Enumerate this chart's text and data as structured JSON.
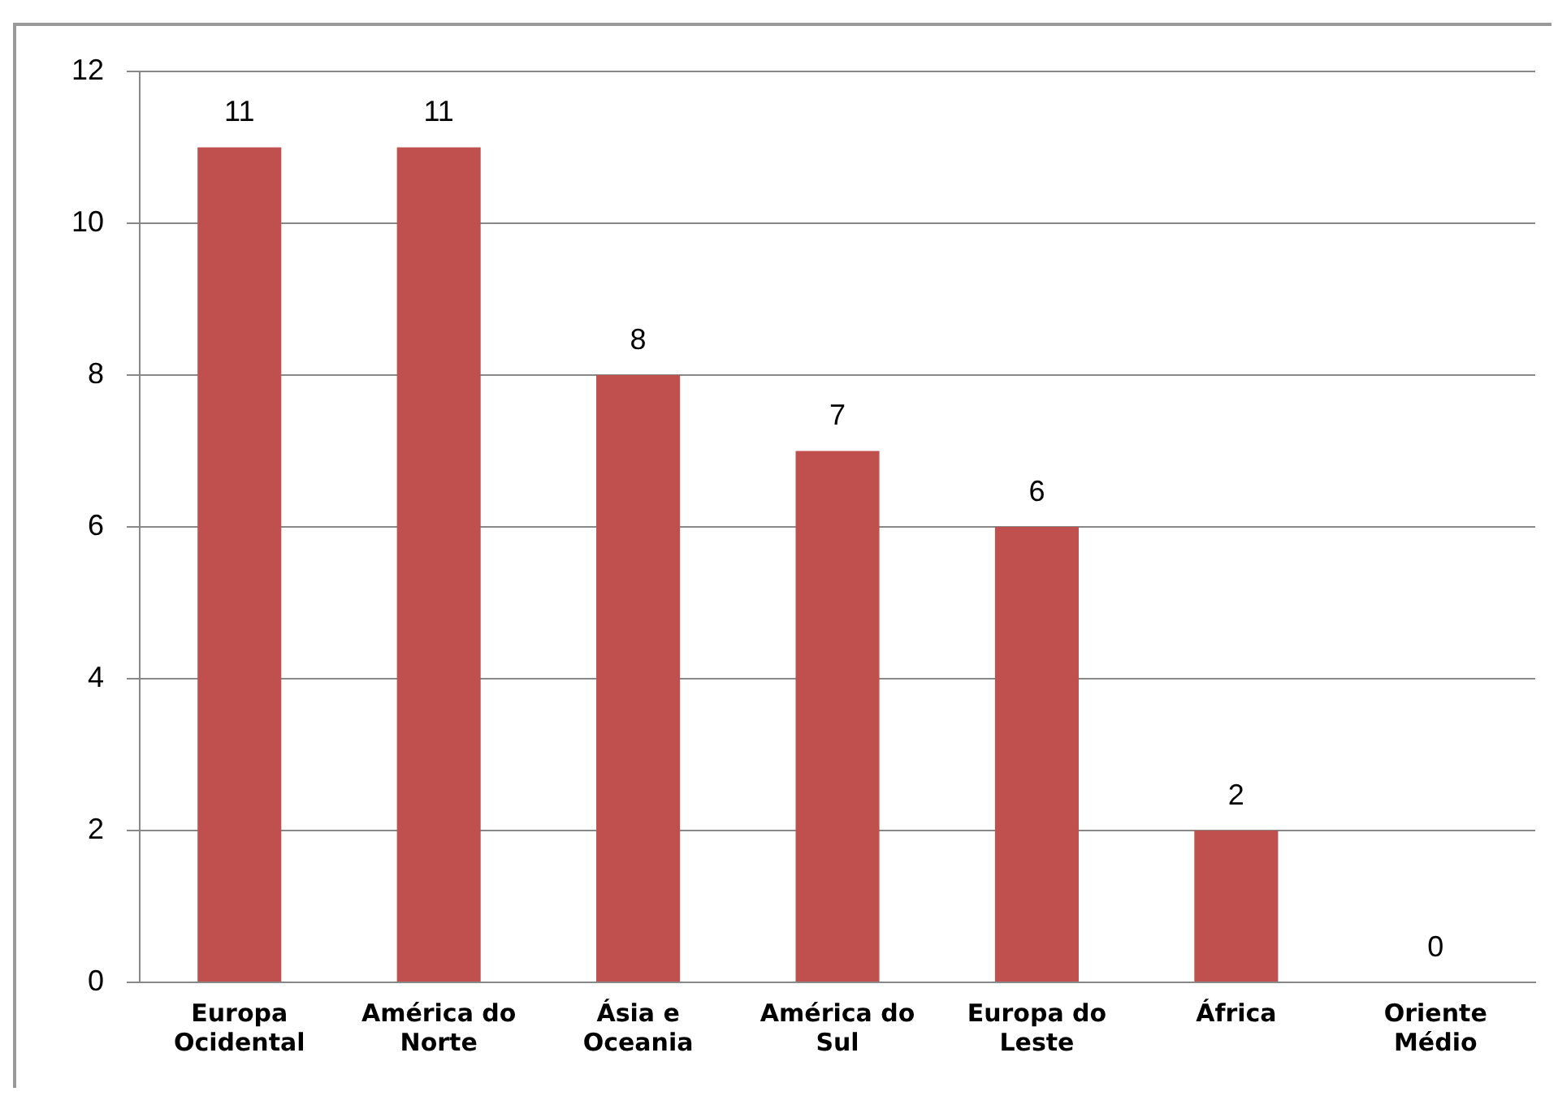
{
  "chart_data": {
    "type": "bar",
    "categories": [
      "Europa Ocidental",
      "América do Norte",
      "Ásia e Oceania",
      "América do Sul",
      "Europa do Leste",
      "África",
      "Oriente Médio"
    ],
    "values": [
      11,
      11,
      8,
      7,
      6,
      2,
      0
    ],
    "color": "#c0504d",
    "ylim": [
      0,
      12
    ],
    "yticks": [
      0,
      2,
      4,
      6,
      8,
      10,
      12
    ],
    "grid": "y",
    "data_labels": true,
    "legend": false
  }
}
